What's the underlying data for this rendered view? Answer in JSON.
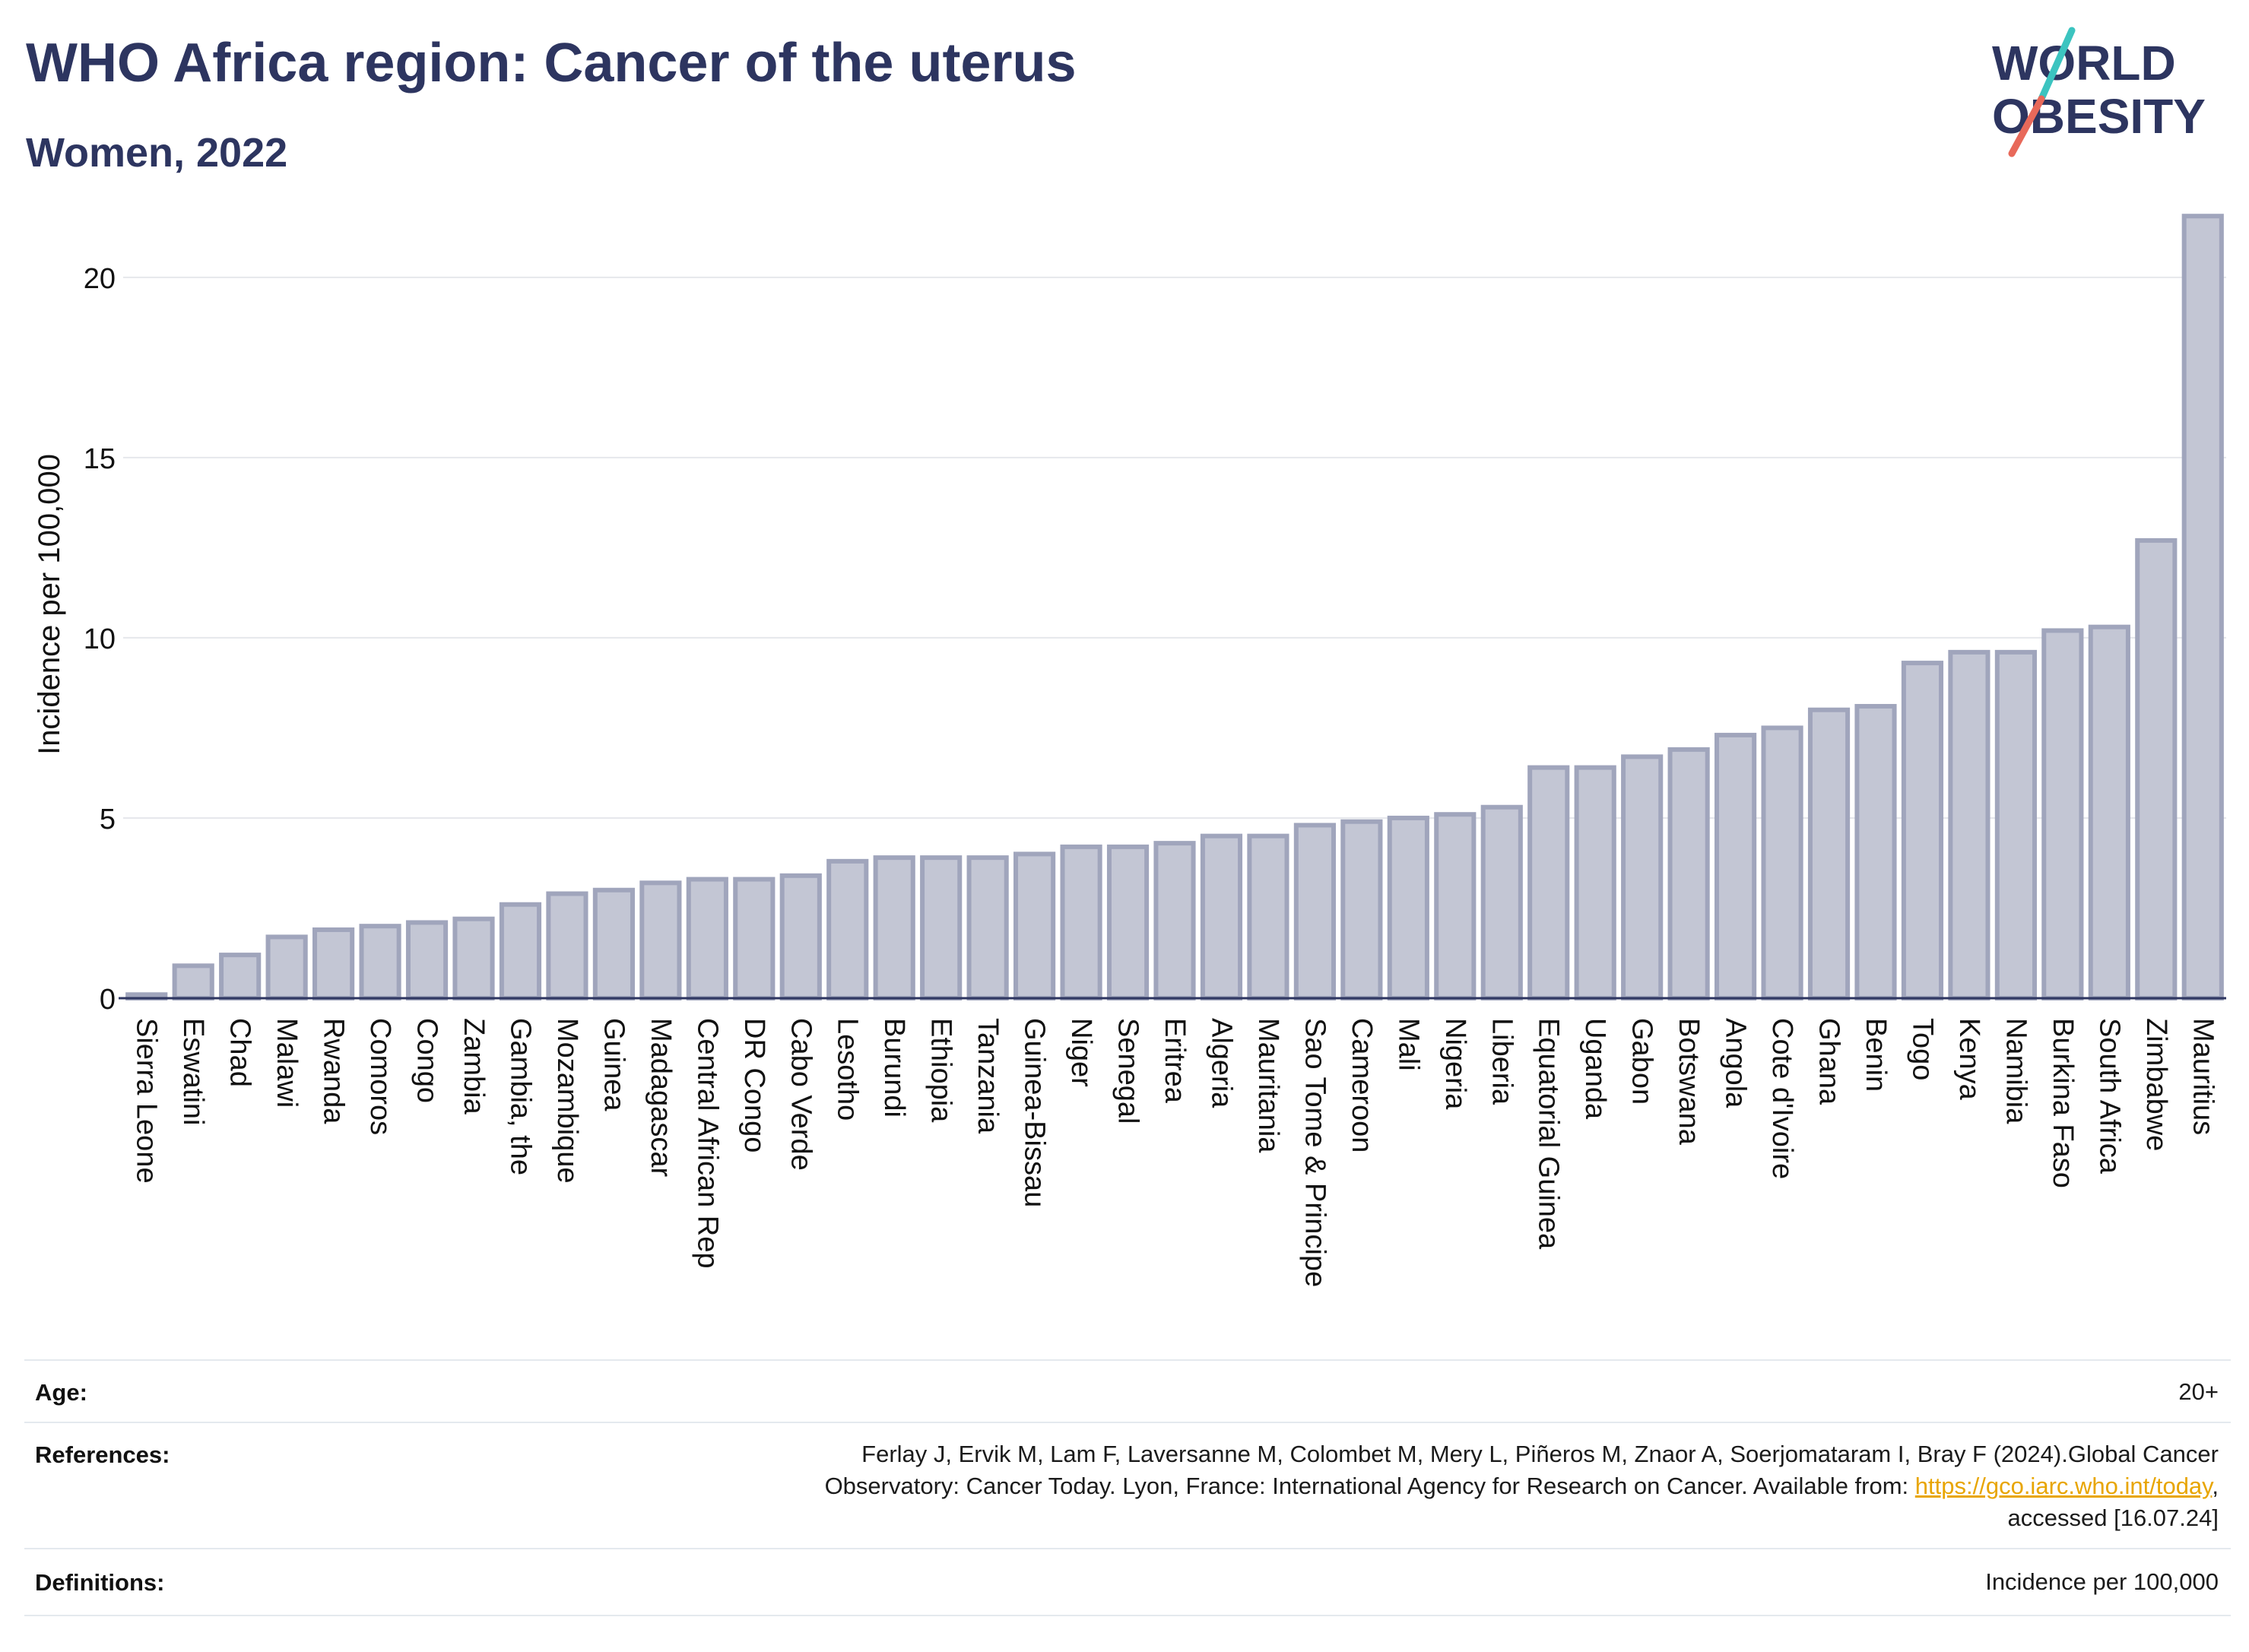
{
  "header": {
    "title": "WHO Africa region: Cancer of the uterus",
    "subtitle": "Women, 2022"
  },
  "logo": {
    "line1": "WORLD",
    "line2": "OBESITY",
    "slash_colors": [
      "#3cc4c0",
      "#e8695a"
    ],
    "text_color": "#2d3560"
  },
  "chart_data": {
    "type": "bar",
    "ylabel": "Incidence per 100,000",
    "ylim": [
      0,
      22
    ],
    "yticks": [
      0,
      5,
      10,
      15,
      20
    ],
    "grid": true,
    "bar_fill": "#c3c6d4",
    "bar_stroke": "#a0a5bc",
    "categories": [
      "Sierra Leone",
      "Eswatini",
      "Chad",
      "Malawi",
      "Rwanda",
      "Comoros",
      "Congo",
      "Zambia",
      "Gambia, the",
      "Mozambique",
      "Guinea",
      "Madagascar",
      "Central African Rep",
      "DR Congo",
      "Cabo Verde",
      "Lesotho",
      "Burundi",
      "Ethiopia",
      "Tanzania",
      "Guinea-Bissau",
      "Niger",
      "Senegal",
      "Eritrea",
      "Algeria",
      "Mauritania",
      "Sao Tome & Principe",
      "Cameroon",
      "Mali",
      "Nigeria",
      "Liberia",
      "Equatorial Guinea",
      "Uganda",
      "Gabon",
      "Botswana",
      "Angola",
      "Cote d'Ivoire",
      "Ghana",
      "Benin",
      "Togo",
      "Kenya",
      "Namibia",
      "Burkina Faso",
      "South Africa",
      "Zimbabwe",
      "Mauritius"
    ],
    "values": [
      0.1,
      0.9,
      1.2,
      1.7,
      1.9,
      2.0,
      2.1,
      2.2,
      2.6,
      2.9,
      3.0,
      3.2,
      3.3,
      3.3,
      3.4,
      3.8,
      3.9,
      3.9,
      3.9,
      4.0,
      4.2,
      4.2,
      4.3,
      4.5,
      4.5,
      4.8,
      4.9,
      5.0,
      5.1,
      5.3,
      6.4,
      6.4,
      6.7,
      6.9,
      7.3,
      7.5,
      8.0,
      8.1,
      9.3,
      9.6,
      9.6,
      10.2,
      10.3,
      12.7,
      21.7
    ]
  },
  "footer": {
    "age_label": "Age:",
    "age_value": "20+",
    "references_label": "References:",
    "references_line1": "Ferlay J, Ervik M, Lam F, Laversanne M, Colombet M, Mery L, Piñeros M, Znaor A, Soerjomataram I, Bray F (2024).Global Cancer",
    "references_line2_pre": "Observatory: Cancer Today. Lyon, France: International Agency for Research on Cancer. Available from: ",
    "references_link": "https://gco.iarc.who.int/today",
    "references_line2_post": ",",
    "references_line3": "accessed [16.07.24]",
    "definitions_label": "Definitions:",
    "definitions_value": "Incidence per 100,000"
  }
}
